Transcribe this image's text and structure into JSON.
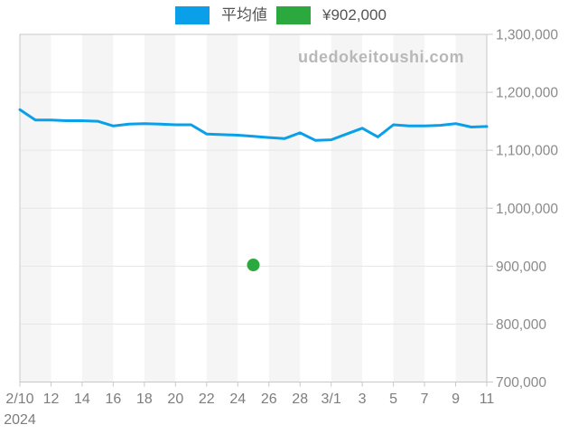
{
  "legend": {
    "items": [
      {
        "label": "平均値",
        "color": "#0AA0E9"
      },
      {
        "label": "¥902,000",
        "color": "#2BA93F"
      }
    ]
  },
  "watermark": "udedokeitoushi.com",
  "chart_data": {
    "type": "line",
    "title": "",
    "xlabel": "",
    "ylabel": "",
    "x": {
      "year_label": "2024",
      "start_label": "2/10",
      "end_label": "11",
      "days_span": 30,
      "ticks": [
        {
          "day_index": 0,
          "label": "2/10"
        },
        {
          "day_index": 2,
          "label": "12"
        },
        {
          "day_index": 4,
          "label": "14"
        },
        {
          "day_index": 6,
          "label": "16"
        },
        {
          "day_index": 8,
          "label": "18"
        },
        {
          "day_index": 10,
          "label": "20"
        },
        {
          "day_index": 12,
          "label": "22"
        },
        {
          "day_index": 14,
          "label": "24"
        },
        {
          "day_index": 16,
          "label": "26"
        },
        {
          "day_index": 18,
          "label": "28"
        },
        {
          "day_index": 20,
          "label": "3/1"
        },
        {
          "day_index": 22,
          "label": "3"
        },
        {
          "day_index": 24,
          "label": "5"
        },
        {
          "day_index": 26,
          "label": "7"
        },
        {
          "day_index": 28,
          "label": "9"
        },
        {
          "day_index": 30,
          "label": "11"
        }
      ]
    },
    "y": {
      "min": 700000,
      "max": 1300000,
      "tick_interval": 100000,
      "ticks": [
        {
          "value": 700000,
          "label": "700,000"
        },
        {
          "value": 800000,
          "label": "800,000"
        },
        {
          "value": 900000,
          "label": "900,000"
        },
        {
          "value": 1000000,
          "label": "1,000,000"
        },
        {
          "value": 1100000,
          "label": "1,100,000"
        },
        {
          "value": 1200000,
          "label": "1,200,000"
        },
        {
          "value": 1300000,
          "label": "1,300,000"
        }
      ]
    },
    "series": [
      {
        "name": "平均値",
        "type": "line",
        "color": "#0AA0E9",
        "values": [
          1170000,
          1152000,
          1152000,
          1151000,
          1151000,
          1150000,
          1142000,
          1145000,
          1146000,
          1145000,
          1144000,
          1144000,
          1128000,
          1127000,
          1126000,
          1124000,
          1122000,
          1120000,
          1130000,
          1117000,
          1118000,
          1128000,
          1138000,
          1123000,
          1144000,
          1142000,
          1142000,
          1143000,
          1146000,
          1140000,
          1141000
        ]
      },
      {
        "name": "¥902,000",
        "type": "point",
        "color": "#2BA93F",
        "points": [
          {
            "day_index": 15,
            "value": 902000
          }
        ]
      }
    ],
    "style": {
      "stripe_color": "#f5f5f5",
      "grid_color": "#e6e6e6",
      "axis_color": "#c8c8c8",
      "x_label_color": "#7d7d7d",
      "y_label_color": "#8a8a8a"
    },
    "legend_position": "top",
    "grid": "horizontal"
  }
}
